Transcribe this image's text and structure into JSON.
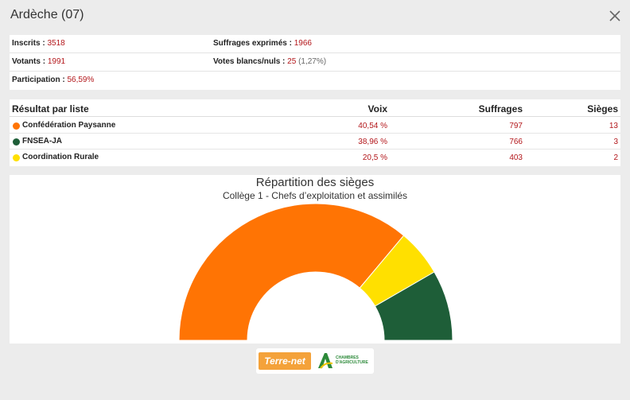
{
  "header": {
    "title": "Ardèche (07)"
  },
  "stats": {
    "inscrits_label": "Inscrits :",
    "inscrits_value": "3518",
    "suffrages_label": "Suffrages exprimés :",
    "suffrages_value": "1966",
    "votants_label": "Votants :",
    "votants_value": "1991",
    "blancs_label": "Votes blancs/nuls :",
    "blancs_value": "25",
    "blancs_pct": "(1,27%)",
    "participation_label": "Participation :",
    "participation_value": "56,59%"
  },
  "results": {
    "headers": {
      "liste": "Résultat par liste",
      "voix": "Voix",
      "suffrages": "Suffrages",
      "sieges": "Sièges"
    },
    "rows": [
      {
        "name": "Confédération Paysanne",
        "voix": "40,54 %",
        "suffrages": "797",
        "sieges": "13",
        "color": "#ff7404"
      },
      {
        "name": "FNSEA-JA",
        "voix": "38,96 %",
        "suffrages": "766",
        "sieges": "3",
        "color": "#1e5e38"
      },
      {
        "name": "Coordination Rurale",
        "voix": "20,5 %",
        "suffrages": "403",
        "sieges": "2",
        "color": "#ffe000"
      }
    ]
  },
  "chart_data": {
    "type": "pie",
    "title": "Répartition des sièges",
    "subtitle": "Collège 1 - Chefs d’exploitation et assimilés",
    "variant": "semicircle-donut",
    "slices": [
      {
        "label": "Confédération Paysanne",
        "value": 13,
        "color": "#ff7404"
      },
      {
        "label": "Coordination Rurale",
        "value": 2,
        "color": "#ffe000"
      },
      {
        "label": "FNSEA-JA",
        "value": 3,
        "color": "#1e5e38"
      }
    ]
  },
  "logos": {
    "terrenet": "Terre-net",
    "chambres": "CHAMBRES D'AGRICULTURE"
  }
}
